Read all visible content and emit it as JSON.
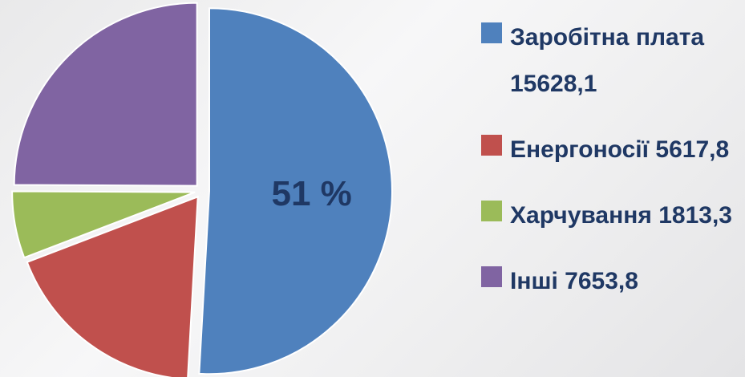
{
  "chart_data": {
    "type": "pie",
    "categories": [
      "Заробітна плата",
      "Енергоносії",
      "Харчування",
      "Інші"
    ],
    "values": [
      15628.1,
      5617.8,
      1813.3,
      7653.8
    ],
    "value_labels": [
      "15628,1",
      "5617,8",
      "1813,3",
      "7653,8"
    ],
    "colors": [
      "#4f81bd",
      "#c0504d",
      "#9bbb59",
      "#8064a2"
    ],
    "annotations": [
      {
        "text": "51 %"
      }
    ],
    "legend": "right"
  }
}
